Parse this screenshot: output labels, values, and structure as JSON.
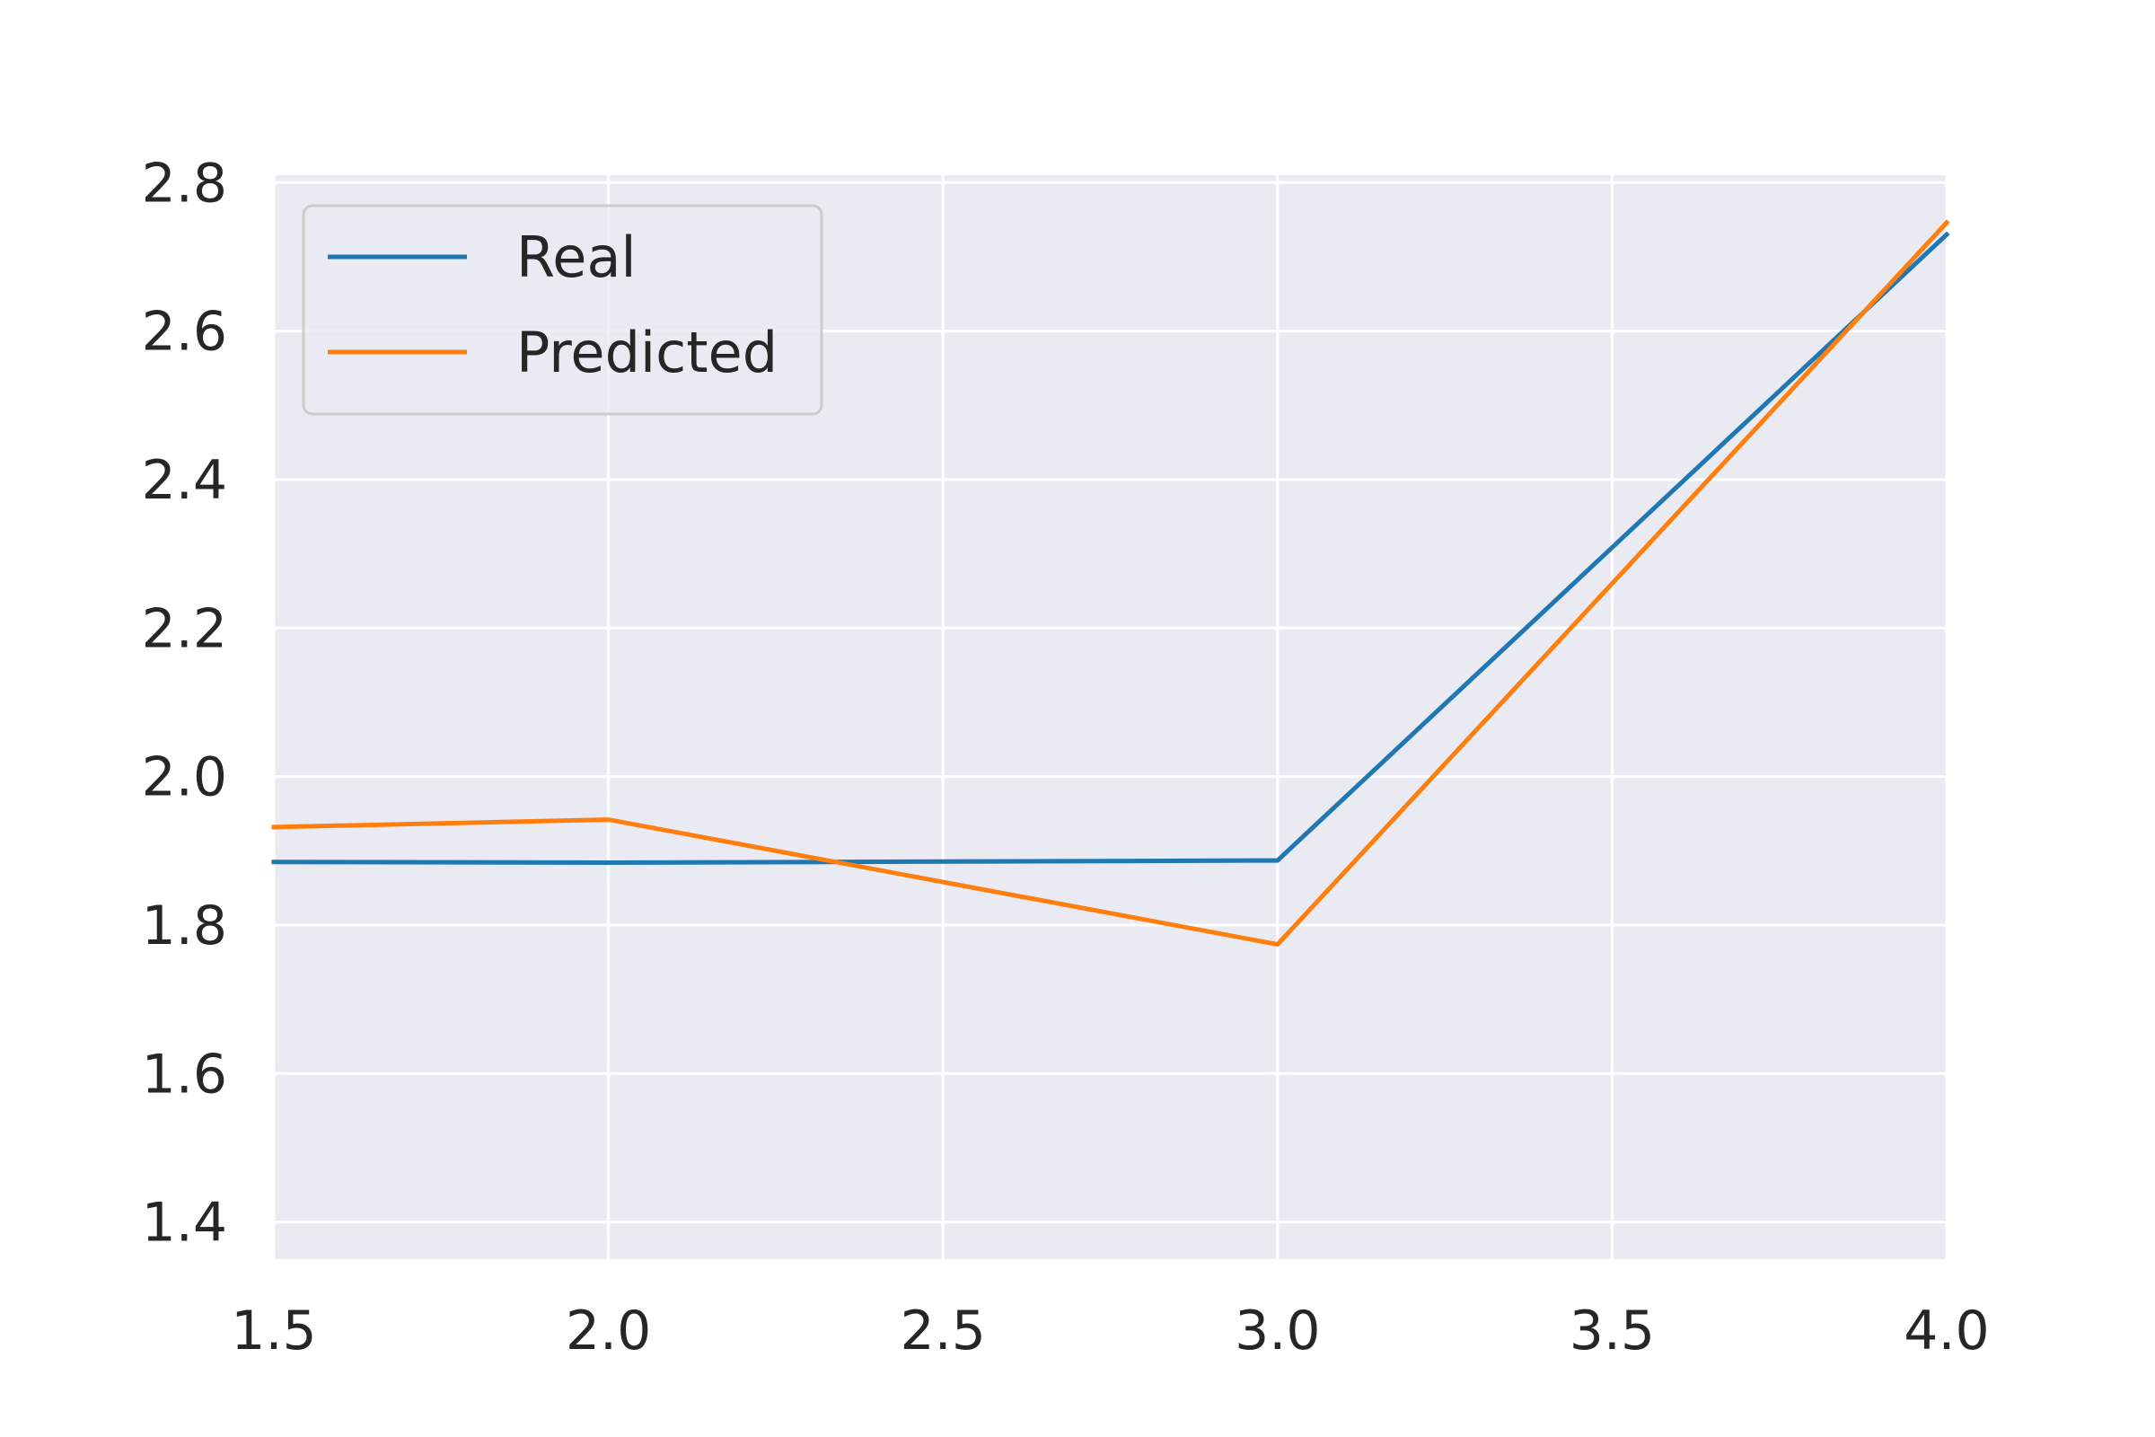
{
  "chart_data": {
    "type": "line",
    "title": "",
    "xlabel": "",
    "ylabel": "",
    "xlim": [
      1.5,
      4.0
    ],
    "ylim": [
      1.35,
      2.81
    ],
    "x_ticks": [
      "1.5",
      "2.0",
      "2.5",
      "3.0",
      "3.5",
      "4.0"
    ],
    "y_ticks": [
      "1.4",
      "1.6",
      "1.8",
      "2.0",
      "2.2",
      "2.4",
      "2.6",
      "2.8"
    ],
    "grid": true,
    "legend_position": "top-left",
    "series": [
      {
        "name": "Real",
        "color": "#1f77b4",
        "x": [
          1.5,
          2.0,
          3.0,
          4.0
        ],
        "y": [
          1.885,
          1.884,
          1.887,
          2.73
        ]
      },
      {
        "name": "Predicted",
        "color": "#ff7f0e",
        "x": [
          1.5,
          2.0,
          3.0,
          4.0
        ],
        "y": [
          1.932,
          1.942,
          1.774,
          2.746
        ]
      }
    ]
  },
  "style": {
    "plot_background": "#eaeaf2",
    "grid_color": "#ffffff",
    "text_color": "#262626"
  }
}
